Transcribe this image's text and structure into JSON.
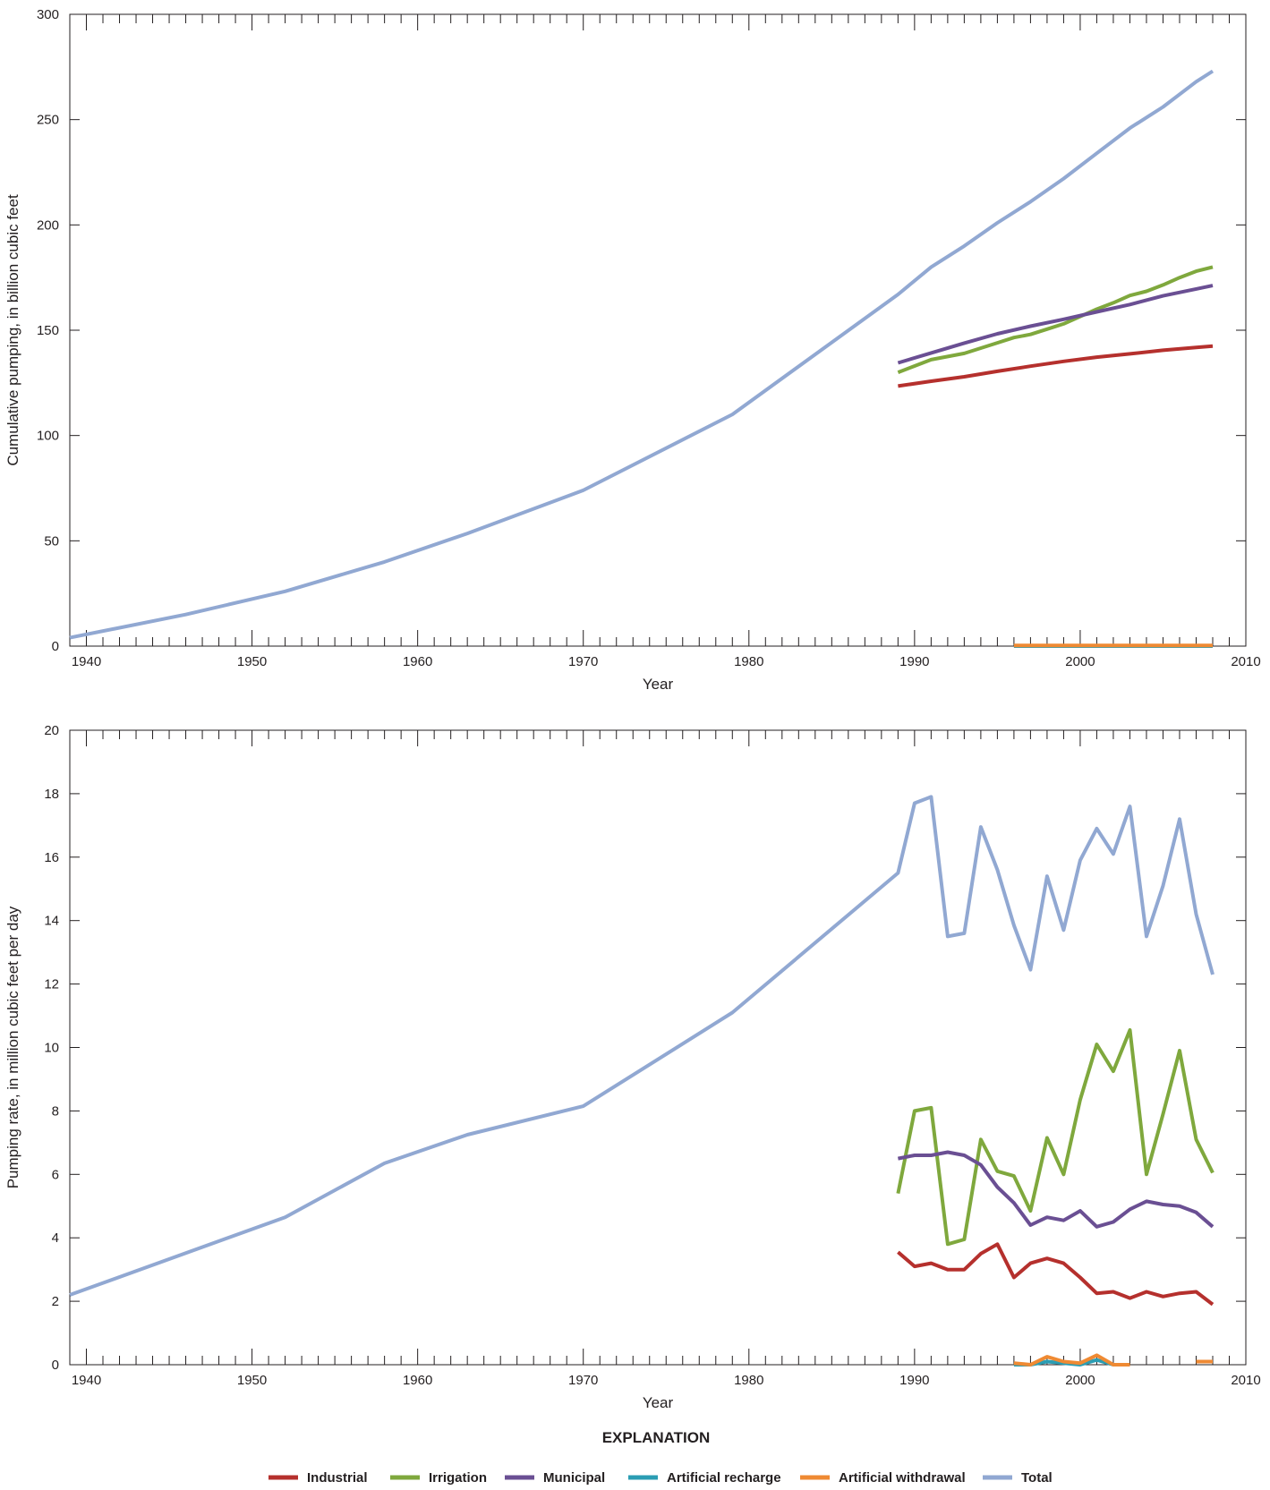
{
  "chart_data": [
    {
      "type": "line",
      "xlabel": "Year",
      "ylabel": "Cumulative pumping, in billion cubic feet",
      "xlim": [
        1939,
        2010
      ],
      "ylim": [
        0,
        300
      ],
      "xticks": [
        1940,
        1950,
        1960,
        1970,
        1980,
        1990,
        2000,
        2010
      ],
      "yticks": [
        0,
        50,
        100,
        150,
        200,
        250,
        300
      ],
      "series": [
        {
          "name": "Industrial",
          "color": "#b5302d",
          "x": [
            1989,
            1991,
            1993,
            1995,
            1997,
            1999,
            2001,
            2003,
            2005,
            2007,
            2008
          ],
          "y": [
            123.5,
            125.8,
            127.9,
            130.5,
            132.9,
            135.2,
            137.2,
            138.8,
            140.5,
            141.8,
            142.5
          ]
        },
        {
          "name": "Irrigation",
          "color": "#7fa83d",
          "x": [
            1989,
            1990,
            1991,
            1992,
            1993,
            1994,
            1995,
            1996,
            1997,
            1998,
            1999,
            2000,
            2001,
            2002,
            2003,
            2004,
            2005,
            2006,
            2007,
            2008
          ],
          "y": [
            130,
            133,
            136,
            137.5,
            139,
            141.5,
            144,
            146.5,
            148,
            150.5,
            153,
            156.5,
            160,
            163,
            166.5,
            168.5,
            171.5,
            175,
            178,
            180
          ]
        },
        {
          "name": "Municipal",
          "color": "#6a4f93",
          "x": [
            1989,
            1991,
            1993,
            1995,
            1997,
            1999,
            2001,
            2003,
            2005,
            2007,
            2008
          ],
          "y": [
            134.5,
            139.2,
            143.9,
            148.3,
            151.9,
            155.2,
            158.7,
            162.2,
            166.3,
            169.6,
            171.2
          ]
        },
        {
          "name": "Artificial recharge",
          "color": "#2b9db3",
          "x": [
            1996,
            2008
          ],
          "y": [
            0,
            0
          ]
        },
        {
          "name": "Artificial withdrawal",
          "color": "#ef8a33",
          "x": [
            1996,
            2008
          ],
          "y": [
            0.3,
            0.3
          ]
        },
        {
          "name": "Total",
          "color": "#91a8d2",
          "x": [
            1939,
            1946,
            1952,
            1958,
            1963,
            1970,
            1979,
            1989,
            1991,
            1993,
            1995,
            1997,
            1999,
            2001,
            2003,
            2005,
            2007,
            2008
          ],
          "y": [
            4,
            15,
            26,
            40,
            53.5,
            74,
            110,
            167,
            180,
            190,
            201,
            211,
            222,
            234,
            246,
            256,
            268,
            273
          ]
        }
      ]
    },
    {
      "type": "line",
      "xlabel": "Year",
      "ylabel": "Pumping rate, in million cubic feet per day",
      "xlim": [
        1939,
        2010
      ],
      "ylim": [
        0,
        20
      ],
      "xticks": [
        1940,
        1950,
        1960,
        1970,
        1980,
        1990,
        2000,
        2010
      ],
      "yticks": [
        0,
        2,
        4,
        6,
        8,
        10,
        12,
        14,
        16,
        18,
        20
      ],
      "series": [
        {
          "name": "Industrial",
          "color": "#b5302d",
          "x": [
            1989,
            1990,
            1991,
            1992,
            1993,
            1994,
            1995,
            1996,
            1997,
            1998,
            1999,
            2000,
            2001,
            2002,
            2003,
            2004,
            2005,
            2006,
            2007,
            2008
          ],
          "y": [
            3.55,
            3.1,
            3.2,
            3.0,
            3.0,
            3.5,
            3.8,
            2.75,
            3.2,
            3.35,
            3.2,
            2.75,
            2.25,
            2.3,
            2.1,
            2.3,
            2.15,
            2.25,
            2.3,
            1.9
          ]
        },
        {
          "name": "Irrigation",
          "color": "#7fa83d",
          "x": [
            1989,
            1990,
            1991,
            1992,
            1993,
            1994,
            1995,
            1996,
            1997,
            1998,
            1999,
            2000,
            2001,
            2002,
            2003,
            2004,
            2005,
            2006,
            2007,
            2008
          ],
          "y": [
            5.4,
            8.0,
            8.1,
            3.8,
            3.95,
            7.1,
            6.1,
            5.95,
            4.85,
            7.15,
            6.0,
            8.35,
            10.1,
            9.25,
            10.55,
            6.0,
            7.9,
            9.9,
            7.1,
            6.05
          ]
        },
        {
          "name": "Municipal",
          "color": "#6a4f93",
          "x": [
            1989,
            1990,
            1991,
            1992,
            1993,
            1994,
            1995,
            1996,
            1997,
            1998,
            1999,
            2000,
            2001,
            2002,
            2003,
            2004,
            2005,
            2006,
            2007,
            2008
          ],
          "y": [
            6.5,
            6.6,
            6.6,
            6.7,
            6.6,
            6.3,
            5.6,
            5.1,
            4.4,
            4.65,
            4.55,
            4.85,
            4.35,
            4.5,
            4.9,
            5.15,
            5.05,
            5.0,
            4.8,
            4.35
          ]
        },
        {
          "name": "Artificial recharge",
          "color": "#2b9db3",
          "x": [
            1996,
            1997,
            1998,
            1999,
            2000,
            2001,
            2002,
            2003
          ],
          "y": [
            0,
            0,
            0.1,
            0.05,
            0,
            0.15,
            0,
            0
          ]
        },
        {
          "name": "Artificial withdrawal",
          "color": "#ef8a33",
          "x": [
            1996,
            1997,
            1998,
            1999,
            2000,
            2001,
            2002,
            2003,
            2004,
            2005,
            2006,
            2007,
            2008
          ],
          "y": [
            0.05,
            0,
            0.25,
            0.1,
            0.05,
            0.3,
            0,
            0,
            null,
            null,
            null,
            0.1,
            0.1
          ]
        },
        {
          "name": "Total",
          "color": "#91a8d2",
          "x": [
            1939,
            1952,
            1958,
            1963,
            1970,
            1979,
            1989,
            1990,
            1991,
            1992,
            1993,
            1994,
            1995,
            1996,
            1997,
            1998,
            1999,
            2000,
            2001,
            2002,
            2003,
            2004,
            2005,
            2006,
            2007,
            2008
          ],
          "y": [
            2.2,
            4.65,
            6.35,
            7.25,
            8.15,
            11.1,
            15.5,
            17.7,
            17.9,
            13.5,
            13.6,
            16.95,
            15.6,
            13.85,
            12.45,
            15.4,
            13.7,
            15.9,
            16.9,
            16.1,
            17.6,
            13.5,
            15.1,
            17.2,
            14.2,
            12.3
          ]
        }
      ]
    }
  ],
  "legend": {
    "title": "EXPLANATION",
    "items": [
      {
        "label": "Industrial",
        "color": "#b5302d"
      },
      {
        "label": "Irrigation",
        "color": "#7fa83d"
      },
      {
        "label": "Municipal",
        "color": "#6a4f93"
      },
      {
        "label": "Artificial recharge",
        "color": "#2b9db3"
      },
      {
        "label": "Artificial withdrawal",
        "color": "#ef8a33"
      },
      {
        "label": "Total",
        "color": "#91a8d2"
      }
    ]
  }
}
